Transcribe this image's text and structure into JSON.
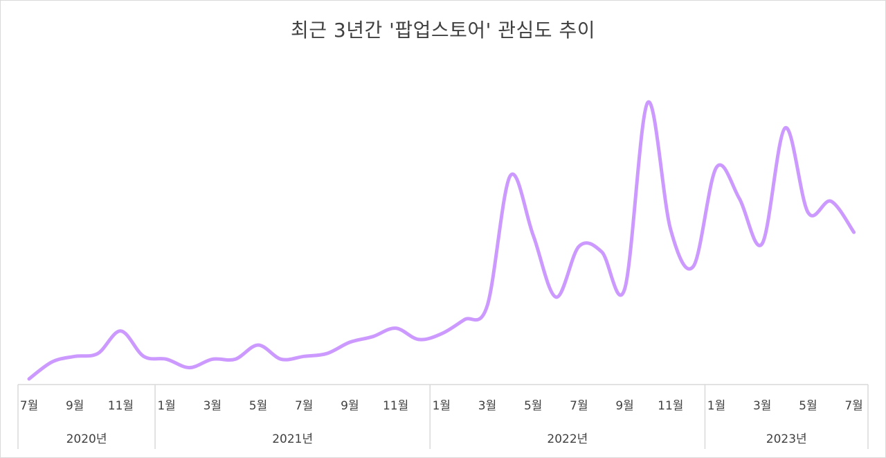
{
  "title": "최근 3년간 '팝업스토어' 관심도 추이",
  "colors": {
    "line": "#cc99ff",
    "axis": "#d9d9d9",
    "text": "#404040"
  },
  "axis": {
    "month_labels": [
      {
        "label": "7월",
        "index": 0
      },
      {
        "label": "9월",
        "index": 2
      },
      {
        "label": "11월",
        "index": 4
      },
      {
        "label": "1월",
        "index": 6
      },
      {
        "label": "3월",
        "index": 8
      },
      {
        "label": "5월",
        "index": 10
      },
      {
        "label": "7월",
        "index": 12
      },
      {
        "label": "9월",
        "index": 14
      },
      {
        "label": "11월",
        "index": 16
      },
      {
        "label": "1월",
        "index": 18
      },
      {
        "label": "3월",
        "index": 20
      },
      {
        "label": "5월",
        "index": 22
      },
      {
        "label": "7월",
        "index": 24
      },
      {
        "label": "9월",
        "index": 26
      },
      {
        "label": "11월",
        "index": 28
      },
      {
        "label": "1월",
        "index": 30
      },
      {
        "label": "3월",
        "index": 32
      },
      {
        "label": "5월",
        "index": 34
      },
      {
        "label": "7월",
        "index": 36
      }
    ],
    "year_labels": [
      {
        "label": "2020년",
        "start": 0,
        "end": 5
      },
      {
        "label": "2021년",
        "start": 6,
        "end": 17
      },
      {
        "label": "2022년",
        "start": 18,
        "end": 29
      },
      {
        "label": "2023년",
        "start": 30,
        "end": 36
      }
    ]
  },
  "chart_data": {
    "type": "line",
    "title": "최근 3년간 '팝업스토어' 관심도 추이",
    "xlabel": "",
    "ylabel": "",
    "y_axis_visible": false,
    "grid": false,
    "legend": "none",
    "ylim": [
      0,
      100
    ],
    "x": [
      "2020-07",
      "2020-08",
      "2020-09",
      "2020-10",
      "2020-11",
      "2020-12",
      "2021-01",
      "2021-02",
      "2021-03",
      "2021-04",
      "2021-05",
      "2021-06",
      "2021-07",
      "2021-08",
      "2021-09",
      "2021-10",
      "2021-11",
      "2021-12",
      "2022-01",
      "2022-02",
      "2022-03",
      "2022-04",
      "2022-05",
      "2022-06",
      "2022-07",
      "2022-08",
      "2022-09",
      "2022-10",
      "2022-11",
      "2022-12",
      "2023-01",
      "2023-02",
      "2023-03",
      "2023-04",
      "2023-05",
      "2023-06",
      "2023-07"
    ],
    "series": [
      {
        "name": "팝업스토어 관심도",
        "color": "#cc99ff",
        "values": [
          2,
          8,
          10,
          11,
          19,
          10,
          9,
          6,
          9,
          9,
          14,
          9,
          10,
          11,
          15,
          17,
          20,
          16,
          18,
          23,
          28,
          74,
          53,
          31,
          49,
          47,
          34,
          100,
          55,
          42,
          77,
          66,
          50,
          91,
          61,
          65,
          54
        ]
      }
    ]
  }
}
